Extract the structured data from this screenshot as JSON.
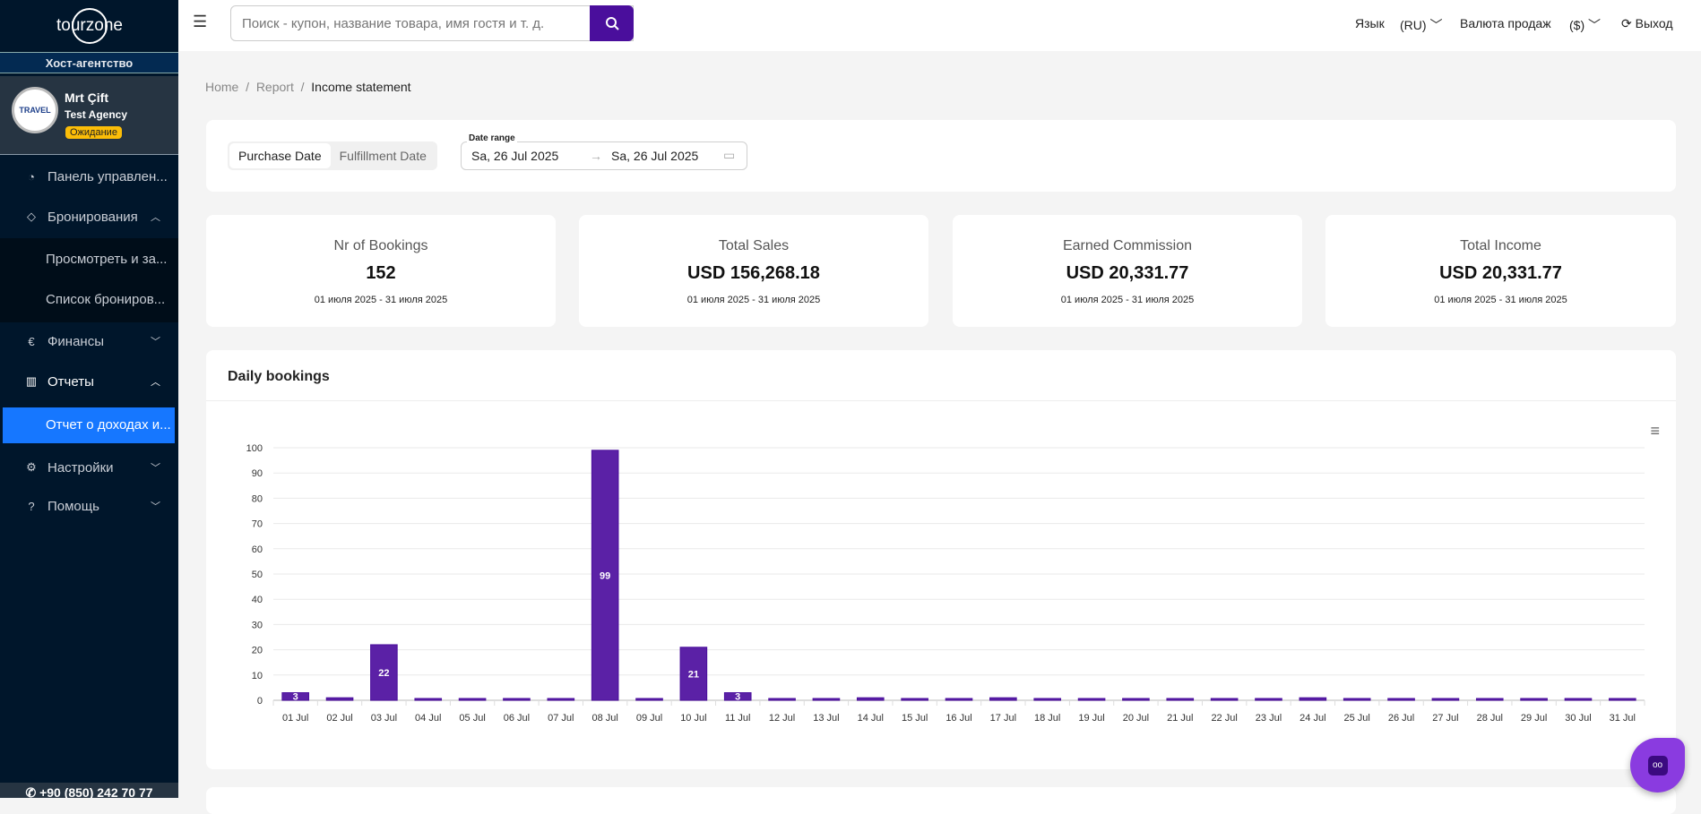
{
  "brand": "tourzone",
  "sidebar": {
    "agency_type": "Хост-агентство",
    "user_name": "Mrt Çift",
    "agency_name": "Test Agency",
    "status": "Ожидание",
    "avatar_text": "TRAVEL",
    "items": [
      {
        "label": "Панель управлен...",
        "icon": "dashboard-icon"
      },
      {
        "label": "Бронирования",
        "icon": "tag-icon"
      },
      {
        "label": "Финансы",
        "icon": "euro-icon"
      },
      {
        "label": "Отчеты",
        "icon": "bar-chart-icon"
      },
      {
        "label": "Настройки",
        "icon": "gear-icon"
      },
      {
        "label": "Помощь",
        "icon": "help-icon"
      }
    ],
    "bookings_sub": [
      "Просмотреть и за...",
      "Список брониров..."
    ],
    "reports_sub": [
      "Отчет о доходах и..."
    ],
    "phone": "+90 (850) 242 70 77"
  },
  "header": {
    "search_placeholder": "Поиск - купон, название товара, имя гостя и т. д.",
    "language_label": "Язык",
    "language_value": "(RU)",
    "currency_label": "Валюта продаж",
    "currency_value": "($)",
    "logout": "Выход"
  },
  "breadcrumb": [
    "Home",
    "Report",
    "Income statement"
  ],
  "filters": {
    "tabs": [
      "Purchase Date",
      "Fulfillment Date"
    ],
    "active_tab": "Purchase Date",
    "date_range_label": "Date range",
    "date_from": "Sa, 26 Jul 2025",
    "date_to": "Sa, 26 Jul 2025"
  },
  "stats": [
    {
      "title": "Nr of Bookings",
      "value": "152",
      "range": "01 июля 2025 - 31 июля 2025"
    },
    {
      "title": "Total Sales",
      "value": "USD 156,268.18",
      "range": "01 июля 2025 - 31 июля 2025"
    },
    {
      "title": "Earned Commission",
      "value": "USD 20,331.77",
      "range": "01 июля 2025 - 31 июля 2025"
    },
    {
      "title": "Total Income",
      "value": "USD 20,331.77",
      "range": "01 июля 2025 - 31 июля 2025"
    }
  ],
  "chart_title": "Daily bookings",
  "chart_data": {
    "type": "bar",
    "title": "Daily bookings",
    "ylim": [
      0,
      100
    ],
    "yticks": [
      0,
      10,
      20,
      30,
      40,
      50,
      60,
      70,
      80,
      90,
      100
    ],
    "color": "#5b21a6",
    "grid": true,
    "categories": [
      "01 Jul",
      "02 Jul",
      "03 Jul",
      "04 Jul",
      "05 Jul",
      "06 Jul",
      "07 Jul",
      "08 Jul",
      "09 Jul",
      "10 Jul",
      "11 Jul",
      "12 Jul",
      "13 Jul",
      "14 Jul",
      "15 Jul",
      "16 Jul",
      "17 Jul",
      "18 Jul",
      "19 Jul",
      "20 Jul",
      "21 Jul",
      "22 Jul",
      "23 Jul",
      "24 Jul",
      "25 Jul",
      "26 Jul",
      "27 Jul",
      "28 Jul",
      "29 Jul",
      "30 Jul",
      "31 Jul"
    ],
    "values": [
      3,
      1,
      22,
      0,
      0,
      0,
      0,
      99,
      0,
      21,
      3,
      0,
      0,
      1,
      0,
      0,
      1,
      0,
      0,
      0,
      0,
      0,
      0,
      1,
      0,
      0,
      0,
      0,
      0,
      0,
      0
    ]
  }
}
